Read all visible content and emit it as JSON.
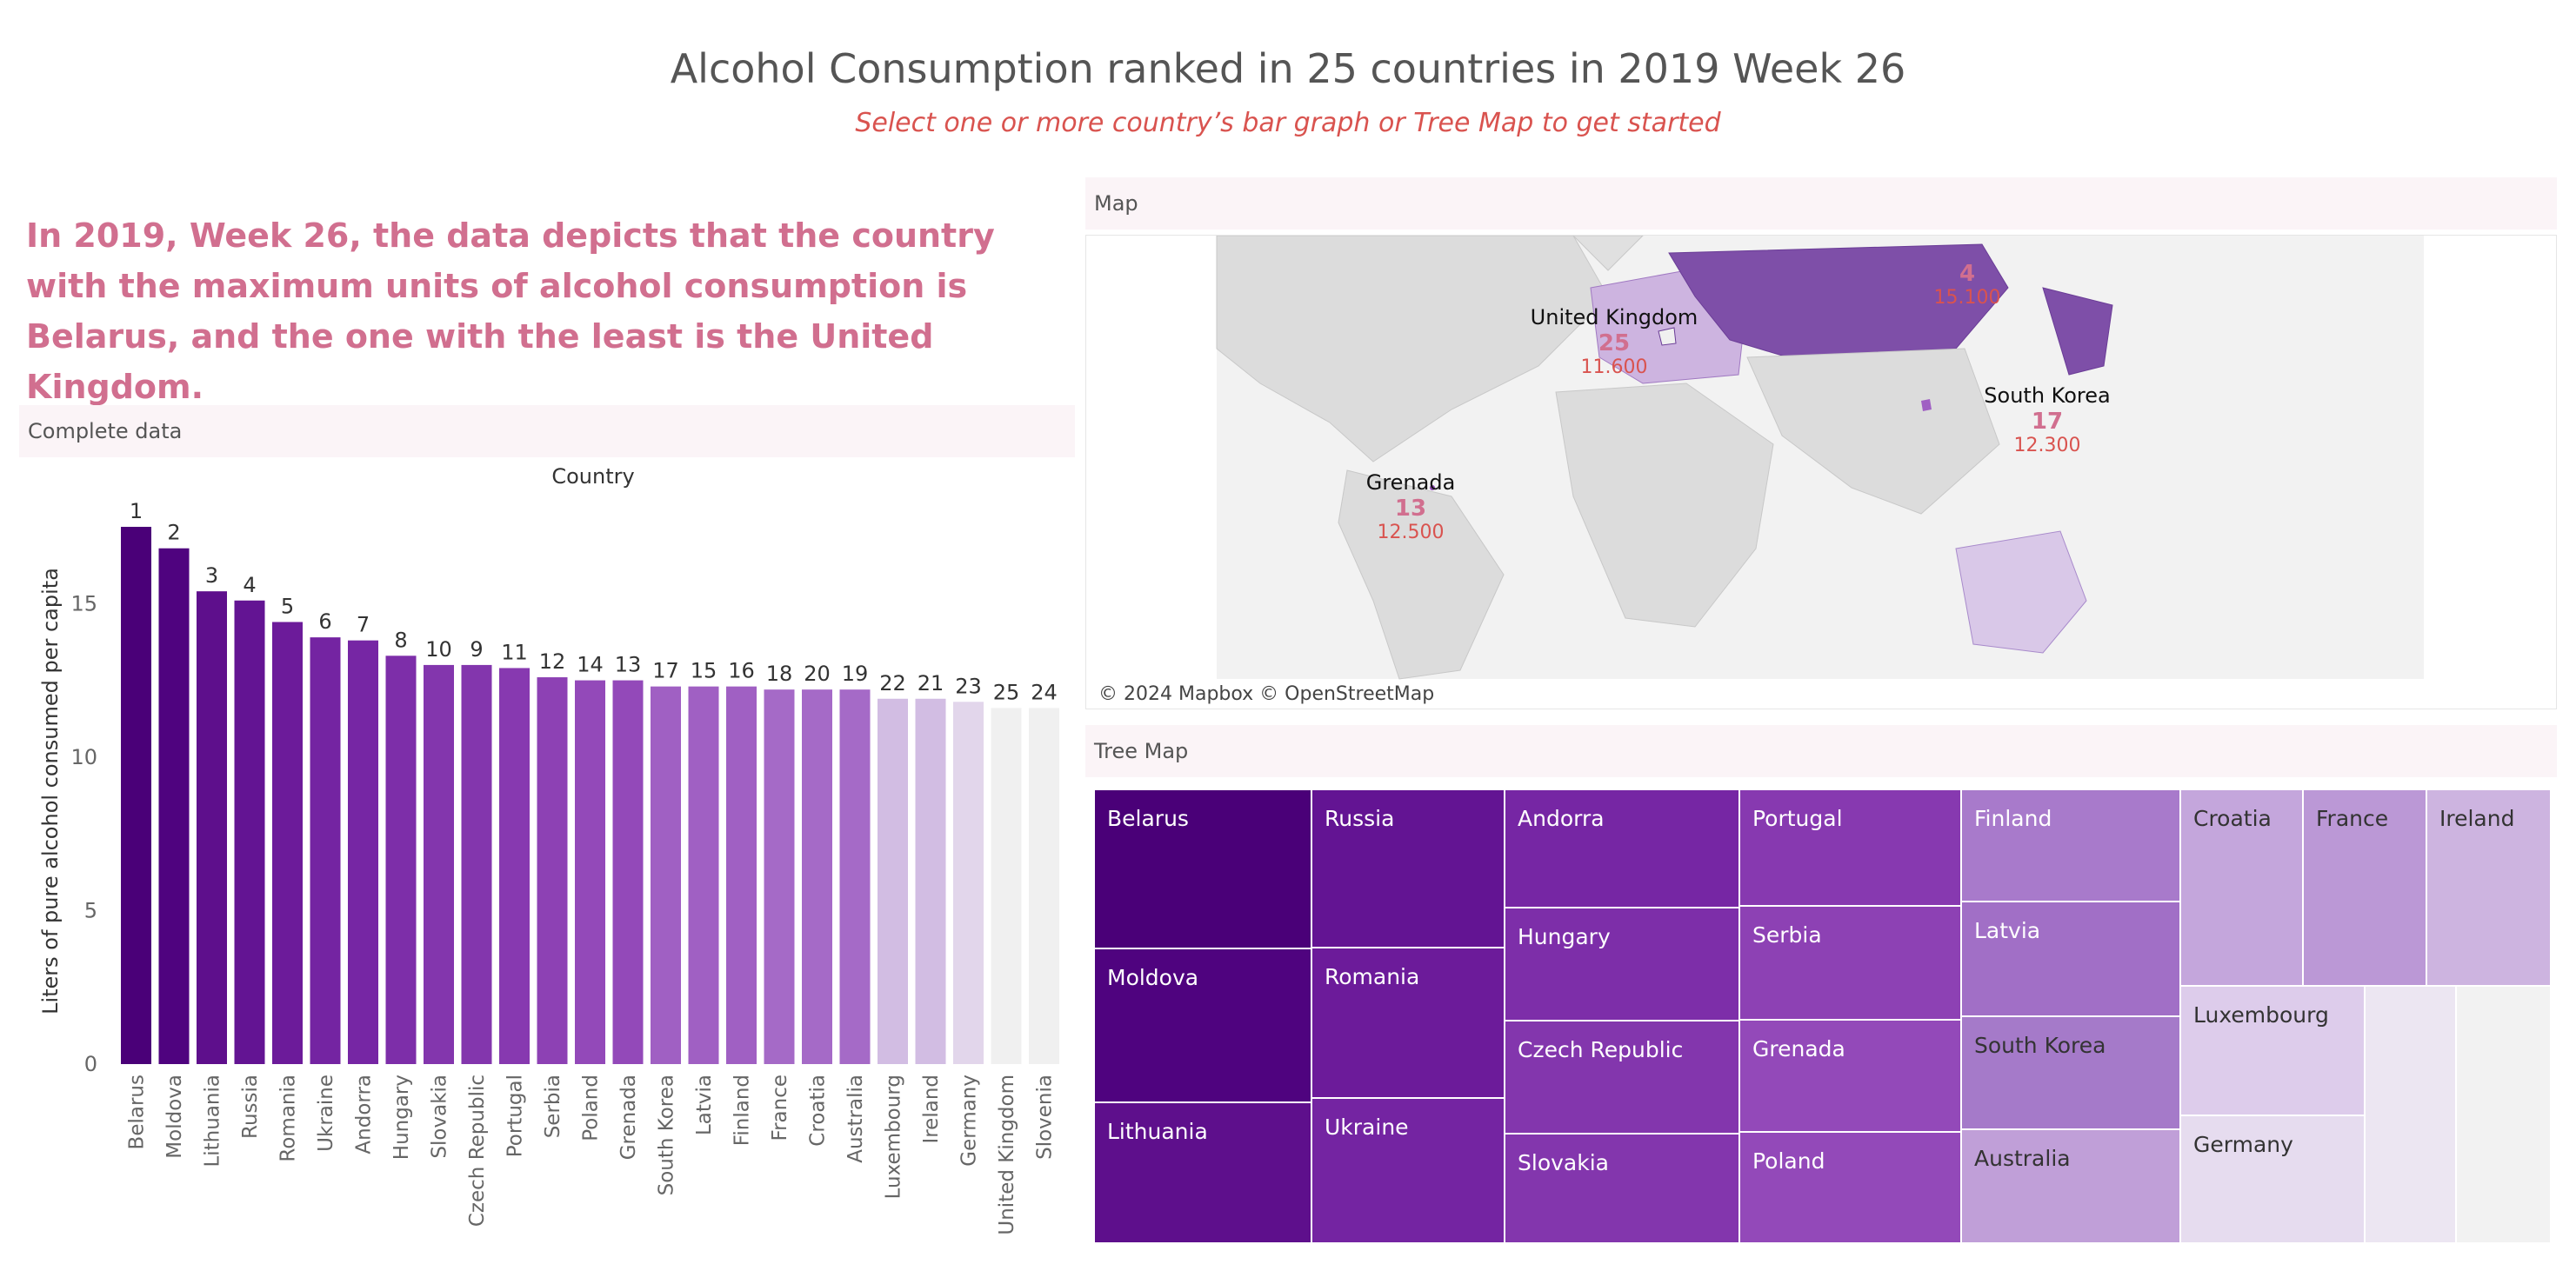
{
  "header": {
    "title": "Alcohol Consumption ranked in 25 countries in 2019 Week 26",
    "subtitle": "Select one or more country’s bar graph or Tree Map to get started"
  },
  "summary": "In 2019, Week 26, the data depicts that the country with the maximum units of alcohol consumption is Belarus, and the one with the least is the United Kingdom.",
  "panels": {
    "bar": "Complete data",
    "map": "Map",
    "tree": "Tree Map"
  },
  "chart_data": [
    {
      "type": "bar",
      "title": "Country",
      "xlabel": "",
      "ylabel": "Liters of pure alcohol consumed per capita",
      "ylim": [
        0,
        17.5
      ],
      "yticks": [
        0,
        5,
        10,
        15
      ],
      "grid": false,
      "categories": [
        "Belarus",
        "Moldova",
        "Lithuania",
        "Russia",
        "Romania",
        "Ukraine",
        "Andorra",
        "Hungary",
        "Slovakia",
        "Czech Republic",
        "Portugal",
        "Serbia",
        "Poland",
        "Grenada",
        "South Korea",
        "Latvia",
        "Finland",
        "France",
        "Croatia",
        "Australia",
        "Luxembourg",
        "Ireland",
        "Germany",
        "United Kingdom",
        "Slovenia"
      ],
      "values": [
        17.5,
        16.8,
        15.4,
        15.1,
        14.4,
        13.9,
        13.8,
        13.3,
        13.0,
        13.0,
        12.9,
        12.6,
        12.5,
        12.5,
        12.3,
        12.3,
        12.3,
        12.2,
        12.2,
        12.2,
        11.9,
        11.9,
        11.8,
        11.6,
        11.6
      ],
      "ranks": [
        1,
        2,
        3,
        4,
        5,
        6,
        7,
        8,
        10,
        9,
        11,
        12,
        14,
        13,
        17,
        15,
        16,
        18,
        20,
        19,
        22,
        21,
        23,
        25,
        24
      ],
      "colors": [
        "#4a0078",
        "#4f037f",
        "#5e0f8c",
        "#631493",
        "#6c1b9a",
        "#7424a2",
        "#7626a4",
        "#7d2ea9",
        "#8336ad",
        "#8336ad",
        "#8739b0",
        "#8d41b4",
        "#9349b9",
        "#9349b9",
        "#a060c3",
        "#a060c3",
        "#a060c3",
        "#a56ac7",
        "#a56ac7",
        "#a56ac7",
        "#d2bde3",
        "#d2bde3",
        "#e2d6eb",
        "#f0f0f0",
        "#f0f0f0"
      ]
    },
    {
      "type": "map",
      "attribution": "© 2024 Mapbox © OpenStreetMap",
      "labels": [
        {
          "name": "",
          "rank": "4",
          "value": "15.100"
        },
        {
          "name": "United Kingdom",
          "rank": "25",
          "value": "11.600"
        },
        {
          "name": "South Korea",
          "rank": "17",
          "value": "12.300"
        },
        {
          "name": "Grenada",
          "rank": "13",
          "value": "12.500"
        }
      ]
    },
    {
      "type": "treemap",
      "cells": [
        {
          "label": "Belarus",
          "color": "#4a0078",
          "text_color": "#ffffff"
        },
        {
          "label": "Moldova",
          "color": "#4f037f",
          "text_color": "#ffffff"
        },
        {
          "label": "Lithuania",
          "color": "#5e0f8c",
          "text_color": "#ffffff"
        },
        {
          "label": "Russia",
          "color": "#631493",
          "text_color": "#ffffff"
        },
        {
          "label": "Romania",
          "color": "#6c1b9a",
          "text_color": "#ffffff"
        },
        {
          "label": "Ukraine",
          "color": "#7424a2",
          "text_color": "#ffffff"
        },
        {
          "label": "Andorra",
          "color": "#7626a4",
          "text_color": "#ffffff"
        },
        {
          "label": "Hungary",
          "color": "#7d2ea9",
          "text_color": "#ffffff"
        },
        {
          "label": "Czech Republic",
          "color": "#8336ad",
          "text_color": "#ffffff"
        },
        {
          "label": "Slovakia",
          "color": "#8336ad",
          "text_color": "#ffffff"
        },
        {
          "label": "Portugal",
          "color": "#8739b0",
          "text_color": "#ffffff"
        },
        {
          "label": "Serbia",
          "color": "#8d41b4",
          "text_color": "#ffffff"
        },
        {
          "label": "Grenada",
          "color": "#9349b9",
          "text_color": "#ffffff"
        },
        {
          "label": "Poland",
          "color": "#9349b9",
          "text_color": "#ffffff"
        },
        {
          "label": "Finland",
          "color": "#a87acb",
          "text_color": "#ffffff"
        },
        {
          "label": "Latvia",
          "color": "#a16fc6",
          "text_color": "#ffffff"
        },
        {
          "label": "South Korea",
          "color": "#a57ac9",
          "text_color": "#333333"
        },
        {
          "label": "Australia",
          "color": "#c09fd8",
          "text_color": "#333333"
        },
        {
          "label": "Croatia",
          "color": "#c4a6dc",
          "text_color": "#333333"
        },
        {
          "label": "France",
          "color": "#bb98d6",
          "text_color": "#333333"
        },
        {
          "label": "Ireland",
          "color": "#cdb4e0",
          "text_color": "#333333"
        },
        {
          "label": "Luxembourg",
          "color": "#ddcceb",
          "text_color": "#333333"
        },
        {
          "label": "Germany",
          "color": "#e6dcef",
          "text_color": "#333333"
        },
        {
          "label": "",
          "color": "#ece6f2",
          "text_color": "#333333"
        },
        {
          "label": "",
          "color": "#f2f2f2",
          "text_color": "#333333"
        }
      ]
    }
  ]
}
